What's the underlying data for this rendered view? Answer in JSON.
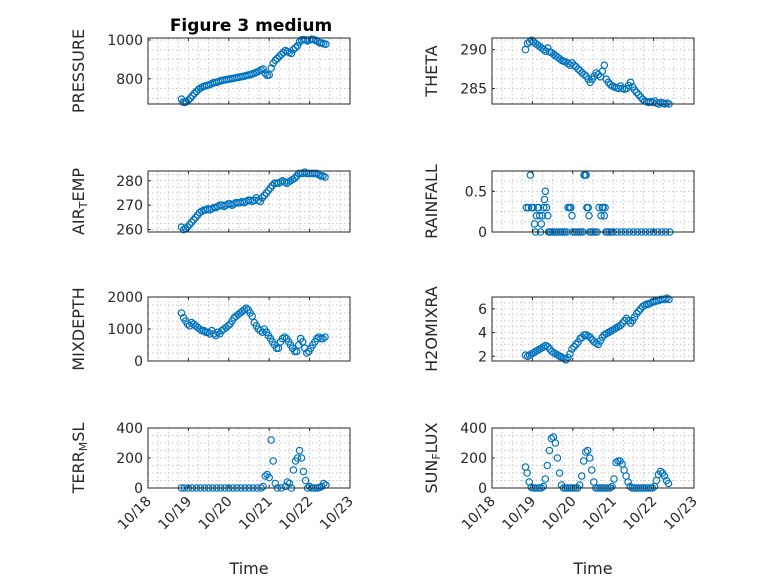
{
  "figure_title": "Figure 3 medium",
  "colors": {
    "marker": "#0072BD",
    "axis": "#262626",
    "grid": "#c8c8c8"
  },
  "chart_data": [
    {
      "type": "scatter",
      "panel": "pressure",
      "title": "Figure 3 medium",
      "ylabel": "PRESSURE",
      "xlabel": "",
      "ylim": [
        670,
        1010
      ],
      "yticks": [
        800,
        1000
      ],
      "xticks": [],
      "grid": true,
      "x": [
        18.83,
        18.87,
        18.91,
        18.95,
        19.0,
        19.05,
        19.1,
        19.15,
        19.2,
        19.25,
        19.3,
        19.35,
        19.4,
        19.45,
        19.5,
        19.55,
        19.6,
        19.65,
        19.7,
        19.75,
        19.8,
        19.85,
        19.9,
        19.95,
        20.0,
        20.05,
        20.1,
        20.15,
        20.2,
        20.25,
        20.3,
        20.35,
        20.4,
        20.45,
        20.5,
        20.55,
        20.6,
        20.65,
        20.7,
        20.75,
        20.8,
        20.85,
        20.9,
        20.95,
        21.0,
        21.05,
        21.1,
        21.15,
        21.2,
        21.25,
        21.3,
        21.35,
        21.4,
        21.45,
        21.5,
        21.55,
        21.6,
        21.65,
        21.7,
        21.75,
        21.8,
        21.85,
        21.9,
        21.95,
        22.0,
        22.05,
        22.1,
        22.15,
        22.2,
        22.25,
        22.3,
        22.35,
        22.4
      ],
      "y": [
        695,
        680,
        678,
        682,
        690,
        700,
        712,
        725,
        735,
        745,
        752,
        758,
        762,
        765,
        768,
        772,
        778,
        780,
        782,
        786,
        790,
        792,
        794,
        796,
        798,
        800,
        802,
        804,
        806,
        808,
        810,
        812,
        815,
        818,
        820,
        822,
        826,
        830,
        835,
        840,
        845,
        850,
        828,
        818,
        820,
        855,
        880,
        895,
        905,
        915,
        925,
        935,
        945,
        940,
        935,
        930,
        950,
        960,
        970,
        990,
        1000,
        1002,
        1000,
        995,
        1000,
        1004,
        1002,
        998,
        992,
        985,
        985,
        980,
        978
      ]
    },
    {
      "type": "scatter",
      "panel": "theta",
      "title": "",
      "ylabel": "THETA",
      "xlabel": "",
      "ylim": [
        283,
        291.5
      ],
      "yticks": [
        285,
        290
      ],
      "xticks": [],
      "grid": true,
      "x": [
        18.83,
        18.88,
        18.93,
        18.98,
        19.03,
        19.08,
        19.13,
        19.18,
        19.23,
        19.28,
        19.33,
        19.38,
        19.43,
        19.48,
        19.53,
        19.58,
        19.63,
        19.68,
        19.73,
        19.78,
        19.83,
        19.88,
        19.93,
        19.98,
        20.03,
        20.08,
        20.13,
        20.18,
        20.23,
        20.28,
        20.33,
        20.38,
        20.43,
        20.48,
        20.53,
        20.58,
        20.63,
        20.68,
        20.73,
        20.78,
        20.83,
        20.88,
        20.93,
        20.98,
        21.03,
        21.08,
        21.13,
        21.18,
        21.23,
        21.28,
        21.33,
        21.38,
        21.43,
        21.48,
        21.53,
        21.58,
        21.63,
        21.68,
        21.73,
        21.78,
        21.83,
        21.88,
        21.93,
        21.98,
        22.03,
        22.08,
        22.13,
        22.18,
        22.23,
        22.28,
        22.33,
        22.38
      ],
      "y": [
        290,
        290.8,
        291,
        291.2,
        291,
        290.8,
        290.6,
        290.4,
        290.2,
        290,
        289.8,
        290.2,
        289.7,
        289.6,
        289.4,
        289.2,
        289.0,
        288.8,
        288.6,
        288.5,
        288.4,
        288.2,
        288.0,
        288.3,
        288.0,
        287.8,
        287.5,
        287.3,
        287.0,
        286.8,
        286.6,
        286.2,
        285.8,
        286.2,
        286.6,
        287.0,
        286.8,
        286.5,
        287.2,
        288.0,
        286.2,
        285.8,
        285.5,
        285.3,
        285.2,
        285.1,
        285.0,
        285.3,
        285.0,
        284.9,
        285.0,
        285.4,
        285.8,
        285.2,
        284.8,
        284.5,
        284.2,
        283.9,
        283.6,
        283.4,
        283.3,
        283.2,
        283.3,
        283.2,
        283.4,
        283.1,
        283.0,
        283.2,
        283.1,
        283.0,
        283.1,
        283.0
      ]
    },
    {
      "type": "scatter",
      "panel": "air_temp",
      "title": "",
      "ylabel": "AIR_TEMP",
      "xlabel": "",
      "ylim": [
        259,
        284
      ],
      "yticks": [
        260,
        270,
        280
      ],
      "xticks": [],
      "grid": true,
      "x": [
        18.83,
        18.88,
        18.93,
        18.98,
        19.03,
        19.08,
        19.13,
        19.18,
        19.23,
        19.28,
        19.33,
        19.38,
        19.43,
        19.48,
        19.53,
        19.58,
        19.63,
        19.68,
        19.73,
        19.78,
        19.83,
        19.88,
        19.93,
        19.98,
        20.03,
        20.08,
        20.13,
        20.18,
        20.23,
        20.28,
        20.33,
        20.38,
        20.43,
        20.48,
        20.53,
        20.58,
        20.63,
        20.68,
        20.73,
        20.78,
        20.83,
        20.88,
        20.93,
        20.98,
        21.03,
        21.08,
        21.13,
        21.18,
        21.23,
        21.28,
        21.33,
        21.38,
        21.43,
        21.48,
        21.53,
        21.58,
        21.63,
        21.68,
        21.73,
        21.78,
        21.83,
        21.88,
        21.93,
        21.98,
        22.03,
        22.08,
        22.13,
        22.18,
        22.23,
        22.28,
        22.33,
        22.38
      ],
      "y": [
        261,
        260,
        260.5,
        261,
        262,
        263,
        264,
        265,
        266,
        267,
        267.5,
        268,
        268,
        268.5,
        268,
        268.5,
        269,
        269,
        269.5,
        270,
        270,
        269.5,
        270,
        270.5,
        270.5,
        270,
        270.5,
        271,
        271,
        271,
        271.5,
        271,
        271.5,
        272,
        272,
        271.5,
        272,
        273,
        272,
        271.5,
        273,
        274,
        275,
        276,
        277,
        278,
        279,
        279,
        279,
        279.5,
        280,
        279.5,
        279,
        279.5,
        280,
        280.5,
        281,
        282,
        283,
        283,
        283,
        283.5,
        283,
        283,
        283,
        283,
        283,
        283,
        282.5,
        282,
        282,
        281.5
      ]
    },
    {
      "type": "scatter",
      "panel": "rainfall",
      "title": "",
      "ylabel": "RAINFALL",
      "xlabel": "",
      "ylim": [
        0,
        0.75
      ],
      "yticks": [
        0,
        0.5
      ],
      "xticks": [],
      "grid": true,
      "x": [
        18.85,
        18.9,
        18.95,
        18.98,
        19.02,
        19.05,
        19.08,
        19.1,
        19.13,
        19.15,
        19.18,
        19.2,
        19.22,
        19.25,
        19.28,
        19.3,
        19.32,
        19.35,
        19.38,
        19.4,
        19.42,
        19.45,
        19.5,
        19.55,
        19.6,
        19.65,
        19.7,
        19.75,
        19.8,
        19.85,
        19.88,
        19.92,
        19.95,
        19.98,
        20.0,
        20.05,
        20.1,
        20.15,
        20.2,
        20.25,
        20.28,
        20.3,
        20.33,
        20.35,
        20.38,
        20.4,
        20.42,
        20.45,
        20.5,
        20.55,
        20.6,
        20.65,
        20.7,
        20.73,
        20.75,
        20.78,
        20.8,
        20.82,
        20.85,
        20.9,
        20.95,
        21.0,
        21.1,
        21.2,
        21.3,
        21.4,
        21.5,
        21.6,
        21.7,
        21.8,
        21.9,
        22.0,
        22.1,
        22.2,
        22.3,
        22.4
      ],
      "y": [
        0.3,
        0.3,
        0.7,
        0.3,
        0.3,
        0.1,
        0,
        0.2,
        0.3,
        0.3,
        0.2,
        0,
        0.1,
        0.2,
        0.3,
        0.4,
        0.5,
        0.3,
        0.2,
        0,
        0,
        0,
        0,
        0,
        0,
        0,
        0,
        0,
        0,
        0,
        0.3,
        0.3,
        0.3,
        0.2,
        0,
        0,
        0,
        0,
        0,
        0,
        0.7,
        0.7,
        0.7,
        0.3,
        0.3,
        0.2,
        0,
        0,
        0,
        0,
        0,
        0.3,
        0.2,
        0.3,
        0.3,
        0.2,
        0.3,
        0,
        0,
        0,
        0,
        0,
        0,
        0,
        0,
        0,
        0,
        0,
        0,
        0,
        0,
        0,
        0,
        0,
        0,
        0
      ]
    },
    {
      "type": "scatter",
      "panel": "mixdepth",
      "title": "",
      "ylabel": "MIXDEPTH",
      "xlabel": "",
      "ylim": [
        0,
        2000
      ],
      "yticks": [
        0,
        1000,
        2000
      ],
      "xticks": [],
      "grid": true,
      "x": [
        18.83,
        18.88,
        18.93,
        18.98,
        19.03,
        19.08,
        19.13,
        19.18,
        19.23,
        19.28,
        19.33,
        19.38,
        19.43,
        19.48,
        19.53,
        19.58,
        19.63,
        19.68,
        19.73,
        19.78,
        19.83,
        19.88,
        19.93,
        19.98,
        20.03,
        20.08,
        20.13,
        20.18,
        20.23,
        20.28,
        20.33,
        20.38,
        20.43,
        20.48,
        20.53,
        20.58,
        20.63,
        20.68,
        20.73,
        20.78,
        20.83,
        20.88,
        20.93,
        20.98,
        21.03,
        21.08,
        21.13,
        21.18,
        21.23,
        21.28,
        21.33,
        21.38,
        21.43,
        21.48,
        21.53,
        21.58,
        21.63,
        21.68,
        21.73,
        21.78,
        21.83,
        21.88,
        21.93,
        21.98,
        22.03,
        22.08,
        22.13,
        22.18,
        22.23,
        22.28,
        22.33,
        22.38
      ],
      "y": [
        1500,
        1350,
        1250,
        1150,
        1100,
        1200,
        1150,
        1100,
        1050,
        1000,
        950,
        950,
        900,
        900,
        850,
        950,
        850,
        800,
        900,
        850,
        950,
        1000,
        1050,
        1100,
        1150,
        1250,
        1350,
        1400,
        1450,
        1500,
        1550,
        1600,
        1650,
        1600,
        1500,
        1400,
        1200,
        1100,
        1000,
        950,
        900,
        1000,
        900,
        800,
        700,
        600,
        500,
        400,
        400,
        600,
        700,
        750,
        700,
        600,
        500,
        400,
        300,
        300,
        500,
        700,
        600,
        400,
        250,
        300,
        400,
        500,
        600,
        700,
        750,
        700,
        700,
        750
      ]
    },
    {
      "type": "scatter",
      "panel": "h2omixra",
      "title": "",
      "ylabel": "H2OMIXRA",
      "xlabel": "",
      "ylim": [
        1.6,
        7
      ],
      "yticks": [
        2,
        4,
        6
      ],
      "xticks": [],
      "grid": true,
      "x": [
        18.83,
        18.88,
        18.93,
        18.98,
        19.03,
        19.08,
        19.13,
        19.18,
        19.23,
        19.28,
        19.33,
        19.38,
        19.43,
        19.48,
        19.53,
        19.58,
        19.63,
        19.68,
        19.73,
        19.78,
        19.83,
        19.88,
        19.93,
        19.98,
        20.03,
        20.08,
        20.13,
        20.18,
        20.23,
        20.28,
        20.33,
        20.38,
        20.43,
        20.48,
        20.53,
        20.58,
        20.63,
        20.68,
        20.73,
        20.78,
        20.83,
        20.88,
        20.93,
        20.98,
        21.03,
        21.08,
        21.13,
        21.18,
        21.23,
        21.28,
        21.33,
        21.38,
        21.43,
        21.48,
        21.53,
        21.58,
        21.63,
        21.68,
        21.73,
        21.78,
        21.83,
        21.88,
        21.93,
        21.98,
        22.03,
        22.08,
        22.13,
        22.18,
        22.23,
        22.28,
        22.33,
        22.38
      ],
      "y": [
        2.1,
        2.0,
        2.1,
        2.2,
        2.3,
        2.4,
        2.5,
        2.6,
        2.7,
        2.8,
        2.9,
        2.8,
        2.6,
        2.4,
        2.3,
        2.2,
        2.1,
        2.0,
        1.9,
        1.8,
        1.7,
        1.9,
        2.2,
        2.6,
        2.8,
        3.0,
        3.2,
        3.5,
        3.6,
        3.8,
        3.8,
        3.7,
        3.6,
        3.4,
        3.2,
        3.1,
        3.0,
        3.3,
        3.6,
        3.8,
        3.9,
        4.0,
        4.1,
        4.2,
        4.3,
        4.4,
        4.5,
        4.6,
        4.8,
        5.0,
        5.2,
        5.0,
        4.8,
        5.0,
        5.3,
        5.6,
        5.8,
        6.0,
        6.2,
        6.3,
        6.4,
        6.4,
        6.5,
        6.6,
        6.6,
        6.7,
        6.7,
        6.8,
        6.8,
        6.8,
        6.9,
        6.8
      ]
    },
    {
      "type": "scatter",
      "panel": "terr_msl",
      "title": "",
      "ylabel": "TERR_MSL",
      "xlabel": "Time",
      "ylim": [
        0,
        400
      ],
      "yticks": [
        0,
        200,
        400
      ],
      "xlim": [
        18,
        23
      ],
      "xticks": [
        "10/18",
        "10/19",
        "10/20",
        "10/21",
        "10/22",
        "10/23"
      ],
      "grid": true,
      "x": [
        18.83,
        18.9,
        19.0,
        19.1,
        19.2,
        19.3,
        19.4,
        19.5,
        19.6,
        19.7,
        19.8,
        19.9,
        20.0,
        20.1,
        20.2,
        20.3,
        20.4,
        20.5,
        20.6,
        20.7,
        20.8,
        20.85,
        20.9,
        20.95,
        21.0,
        21.05,
        21.1,
        21.15,
        21.2,
        21.3,
        21.4,
        21.45,
        21.5,
        21.55,
        21.6,
        21.65,
        21.7,
        21.75,
        21.8,
        21.85,
        21.9,
        21.95,
        22.0,
        22.05,
        22.1,
        22.15,
        22.2,
        22.25,
        22.3,
        22.35,
        22.4
      ],
      "y": [
        0,
        0,
        0,
        0,
        0,
        0,
        0,
        0,
        0,
        0,
        0,
        0,
        0,
        0,
        0,
        0,
        0,
        0,
        0,
        0,
        0,
        10,
        80,
        90,
        70,
        320,
        180,
        30,
        0,
        0,
        10,
        40,
        30,
        0,
        120,
        180,
        200,
        250,
        200,
        110,
        50,
        0,
        10,
        0,
        0,
        0,
        0,
        5,
        10,
        30,
        20
      ]
    },
    {
      "type": "scatter",
      "panel": "sun_flux",
      "title": "",
      "ylabel": "SUN_FLUX",
      "xlabel": "Time",
      "ylim": [
        0,
        400
      ],
      "yticks": [
        0,
        200,
        400
      ],
      "xlim": [
        18,
        23
      ],
      "xticks": [
        "10/18",
        "10/19",
        "10/20",
        "10/21",
        "10/22",
        "10/23"
      ],
      "grid": true,
      "x": [
        18.83,
        18.87,
        18.92,
        18.97,
        19.02,
        19.07,
        19.12,
        19.17,
        19.22,
        19.27,
        19.32,
        19.37,
        19.42,
        19.47,
        19.52,
        19.57,
        19.62,
        19.67,
        19.72,
        19.77,
        19.82,
        19.87,
        19.92,
        19.97,
        20.02,
        20.07,
        20.12,
        20.17,
        20.22,
        20.27,
        20.32,
        20.37,
        20.42,
        20.47,
        20.52,
        20.57,
        20.62,
        20.67,
        20.72,
        20.77,
        20.82,
        20.87,
        20.92,
        20.97,
        21.02,
        21.07,
        21.12,
        21.17,
        21.22,
        21.27,
        21.32,
        21.37,
        21.42,
        21.47,
        21.52,
        21.57,
        21.62,
        21.67,
        21.72,
        21.77,
        21.82,
        21.87,
        21.92,
        21.97,
        22.02,
        22.07,
        22.12,
        22.17,
        22.22,
        22.27,
        22.32,
        22.37
      ],
      "y": [
        140,
        100,
        40,
        5,
        0,
        0,
        0,
        0,
        0,
        10,
        60,
        150,
        250,
        330,
        340,
        300,
        200,
        100,
        20,
        0,
        0,
        0,
        0,
        0,
        0,
        0,
        0,
        20,
        80,
        180,
        240,
        250,
        200,
        120,
        40,
        0,
        0,
        0,
        0,
        0,
        0,
        0,
        0,
        10,
        60,
        170,
        180,
        180,
        160,
        120,
        80,
        40,
        10,
        0,
        0,
        0,
        0,
        0,
        0,
        0,
        0,
        0,
        0,
        0,
        10,
        50,
        90,
        110,
        100,
        80,
        50,
        30
      ]
    }
  ]
}
